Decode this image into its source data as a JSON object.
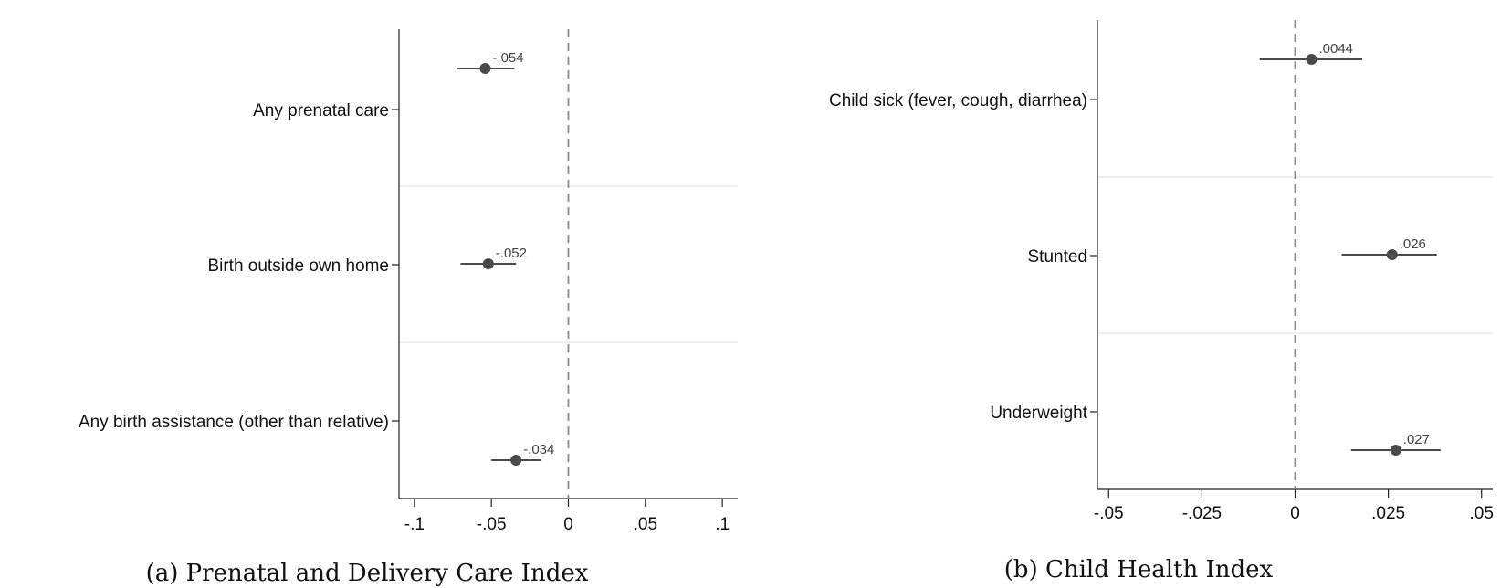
{
  "chart_data": [
    {
      "type": "scatter",
      "caption": "(a) Prenatal and Delivery Care Index",
      "categories": [
        "Any prenatal care",
        "Birth outside own home",
        "Any birth assistance (other than relative)"
      ],
      "series": [
        {
          "estimates": [
            -0.054,
            -0.052,
            -0.034
          ],
          "labels": [
            "-.054",
            "-.052",
            "-.034"
          ],
          "ci_low": [
            -0.072,
            -0.07,
            -0.05
          ],
          "ci_high": [
            -0.035,
            -0.034,
            -0.018
          ]
        }
      ],
      "xlim": [
        -0.11,
        0.11
      ],
      "xticks": [
        -0.1,
        -0.05,
        0,
        0.05,
        0.1
      ],
      "xtick_labels": [
        "-.1",
        "-.05",
        "0",
        ".05",
        ".1"
      ],
      "reference_line": 0,
      "colors": {
        "marker": "#4a4a4a",
        "reference": "#8c8c8c",
        "grid": "#e6ebeb"
      }
    },
    {
      "type": "scatter",
      "caption": "(b) Child Health Index",
      "categories": [
        "Child sick (fever, cough, diarrhea)",
        "Stunted",
        "Underweight"
      ],
      "series": [
        {
          "estimates": [
            0.0044,
            0.026,
            0.027
          ],
          "labels": [
            ".0044",
            ".026",
            ".027"
          ],
          "ci_low": [
            -0.0095,
            0.0125,
            0.015
          ],
          "ci_high": [
            0.018,
            0.038,
            0.039
          ]
        }
      ],
      "xlim": [
        -0.053,
        0.053
      ],
      "xticks": [
        -0.05,
        -0.025,
        0,
        0.025,
        0.05
      ],
      "xtick_labels": [
        "-.05",
        "-.025",
        "0",
        ".025",
        ".05"
      ],
      "reference_line": 0,
      "colors": {
        "marker": "#4a4a4a",
        "reference": "#8c8c8c",
        "grid": "#e6ebeb"
      }
    }
  ]
}
